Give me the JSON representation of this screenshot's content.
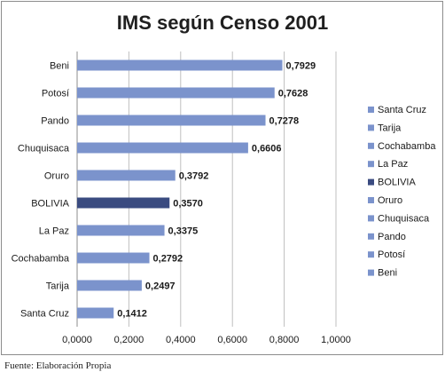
{
  "chart_data": {
    "type": "bar",
    "orientation": "horizontal",
    "title": "IMS según Censo 2001",
    "categories": [
      "Beni",
      "Potosí",
      "Pando",
      "Chuquisaca",
      "Oruro",
      "BOLIVIA",
      "La Paz",
      "Cochabamba",
      "Tarija",
      "Santa Cruz"
    ],
    "values": [
      0.7929,
      0.7628,
      0.7278,
      0.6606,
      0.3792,
      0.357,
      0.3375,
      0.2792,
      0.2497,
      0.1412
    ],
    "value_labels": [
      "0,7929",
      "0,7628",
      "0,7278",
      "0,6606",
      "0,3792",
      "0,3570",
      "0,3375",
      "0,2792",
      "0,2497",
      "0,1412"
    ],
    "xlim": [
      0,
      1
    ],
    "xticks": [
      "0,0000",
      "0,2000",
      "0,4000",
      "0,6000",
      "0,8000",
      "1,0000"
    ],
    "grid": true,
    "legend_position": "right",
    "legend": [
      "Santa Cruz",
      "Tarija",
      "Cochabamba",
      "La Paz",
      "BOLIVIA",
      "Oruro",
      "Chuquisaca",
      "Pando",
      "Potosí",
      "Beni"
    ],
    "colors": {
      "default": "#7b93cc",
      "highlight": "#3a4b80",
      "highlight_category": "BOLIVIA"
    }
  },
  "source_note": "Fuente: Elaboración Propia"
}
